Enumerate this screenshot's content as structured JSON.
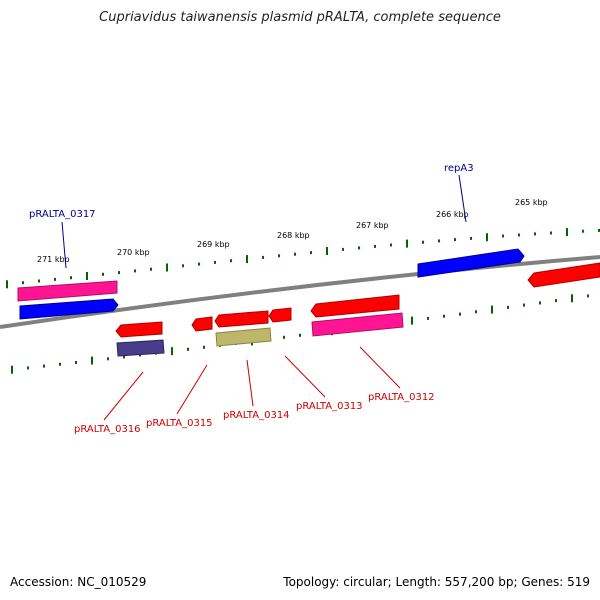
{
  "title": "Cupriavidus taiwanensis plasmid pRALTA, complete sequence",
  "footer": {
    "accession": "Accession: NC_010529",
    "topology": "Topology: circular; Length: 557,200 bp; Genes: 519"
  },
  "ticks": [
    {
      "label": "271 kbp",
      "pos": 271000
    },
    {
      "label": "270 kbp",
      "pos": 270000
    },
    {
      "label": "269 kbp",
      "pos": 269000
    },
    {
      "label": "268 kbp",
      "pos": 268000
    },
    {
      "label": "267 kbp",
      "pos": 267000
    },
    {
      "label": "266 kbp",
      "pos": 266000
    },
    {
      "label": "265 kbp",
      "pos": 265000
    }
  ],
  "gene_labels": [
    {
      "text": "pRALTA_0317",
      "color": "#00008b"
    },
    {
      "text": "repA3",
      "color": "#00008b"
    },
    {
      "text": "pRALTA_0316",
      "color": "#cc0000"
    },
    {
      "text": "pRALTA_0315",
      "color": "#cc0000"
    },
    {
      "text": "pRALTA_0314",
      "color": "#cc0000"
    },
    {
      "text": "pRALTA_0313",
      "color": "#cc0000"
    },
    {
      "text": "pRALTA_0312",
      "color": "#cc0000"
    }
  ],
  "colors": {
    "cds_red": "#ff0000",
    "gene_pink": "#ff1493",
    "cds_blue": "#0000ff",
    "misc_purple": "#483d8b",
    "misc_olive": "#bdb76b",
    "backbone": "#808080",
    "tick": "#006400"
  }
}
